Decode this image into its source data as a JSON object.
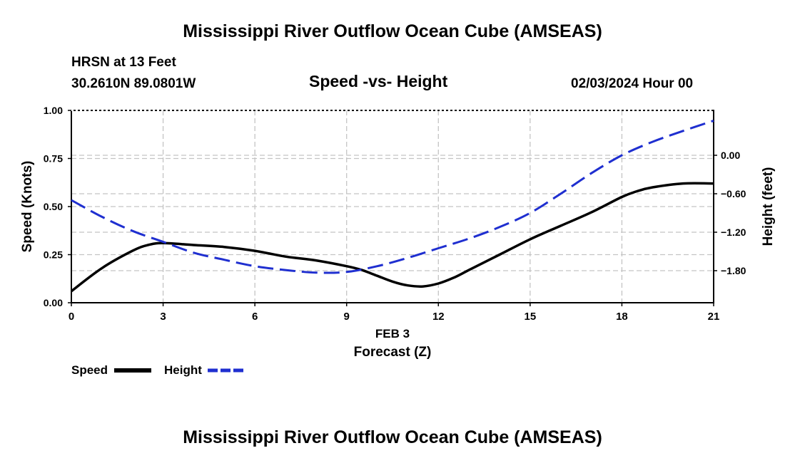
{
  "header": {
    "title_top": "Mississippi River Outflow Ocean Cube (AMSEAS)",
    "station": "HRSN at 13 Feet",
    "coords": "30.2610N  89.0801W",
    "subtitle": "Speed -vs- Height",
    "datetime": "02/03/2024 Hour 00",
    "title_bottom": "Mississippi River Outflow Ocean Cube (AMSEAS)"
  },
  "chart_data": {
    "type": "line",
    "title": "Speed -vs- Height",
    "xlabel": "Forecast (Z)",
    "xdate": "FEB 3",
    "ylabel_left": "Speed (Knots)",
    "ylabel_right": "Height (feet)",
    "xlim": [
      0,
      21
    ],
    "ylim_left": [
      0,
      1
    ],
    "ylim_right": [
      -2.3,
      0.7
    ],
    "x_ticks": [
      0,
      3,
      6,
      9,
      12,
      15,
      18,
      21
    ],
    "x_tick_labels": [
      "0",
      "3",
      "6",
      "9",
      "12",
      "15",
      "18",
      "21"
    ],
    "y_left_ticks": [
      0,
      0.25,
      0.5,
      0.75,
      1.0
    ],
    "y_left_tick_labels": [
      "0.00",
      "0.25",
      "0.50",
      "0.75",
      "1.00"
    ],
    "y_right_ticks": [
      -1.8,
      -1.2,
      -0.6,
      0.0
    ],
    "y_right_tick_labels": [
      "−1.80",
      "−1.20",
      "−0.60",
      "0.00"
    ],
    "grid": true,
    "series": [
      {
        "name": "Speed",
        "axis": "left",
        "color": "#000000",
        "dash": "solid",
        "x": [
          0,
          1,
          2,
          2.5,
          3,
          4,
          5,
          6,
          7,
          8,
          9,
          9.5,
          10,
          10.5,
          11,
          11.5,
          12,
          12.5,
          13,
          14,
          15,
          16,
          17,
          18,
          18.5,
          19,
          20,
          21
        ],
        "values": [
          0.06,
          0.18,
          0.27,
          0.3,
          0.31,
          0.3,
          0.29,
          0.27,
          0.24,
          0.22,
          0.19,
          0.17,
          0.14,
          0.11,
          0.09,
          0.085,
          0.1,
          0.13,
          0.17,
          0.25,
          0.33,
          0.4,
          0.47,
          0.55,
          0.58,
          0.6,
          0.62,
          0.62
        ]
      },
      {
        "name": "Height",
        "axis": "right",
        "color": "#1f2fd0",
        "dash": "dashed",
        "x": [
          0,
          1,
          2,
          3,
          4,
          5,
          6,
          7,
          8,
          9,
          10,
          11,
          12,
          13,
          14,
          15,
          16,
          17,
          18,
          19,
          20,
          21
        ],
        "values": [
          -0.7,
          -0.96,
          -1.18,
          -1.35,
          -1.52,
          -1.63,
          -1.73,
          -1.79,
          -1.83,
          -1.82,
          -1.73,
          -1.6,
          -1.45,
          -1.3,
          -1.12,
          -0.9,
          -0.6,
          -0.28,
          0.0,
          0.21,
          0.38,
          0.54
        ]
      }
    ],
    "legend": [
      "Speed",
      "Height"
    ],
    "legend_position": "bottom-left"
  }
}
